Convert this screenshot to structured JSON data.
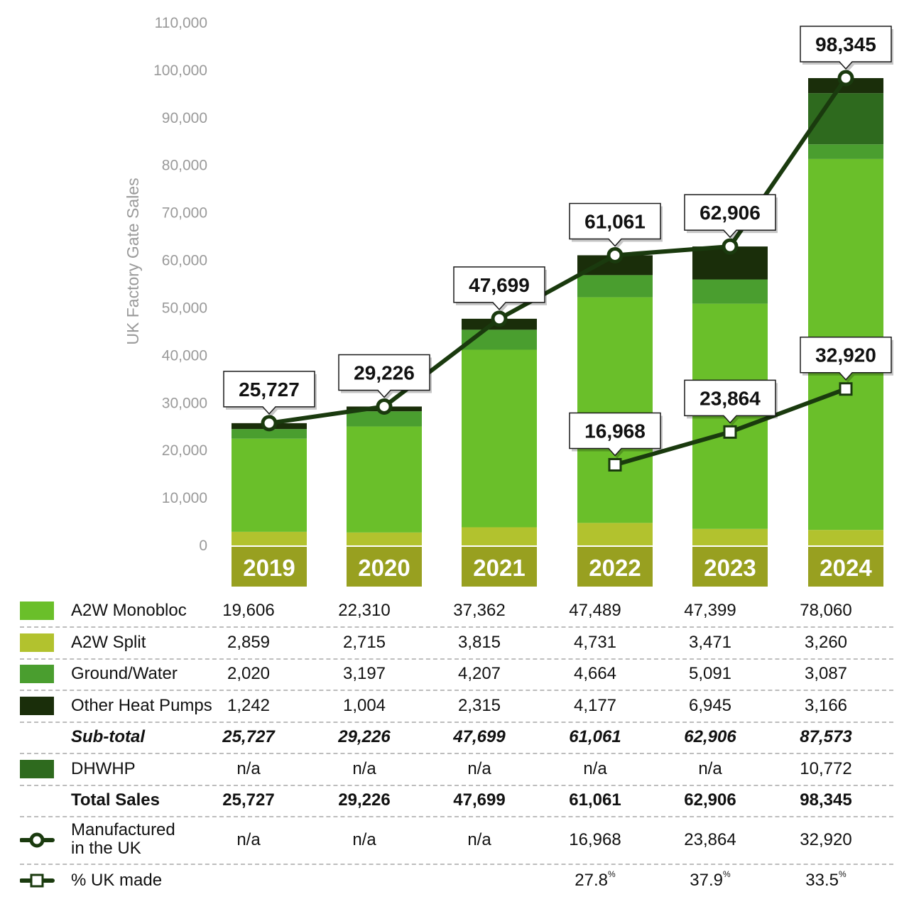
{
  "chart_data": {
    "type": "bar",
    "ylabel": "UK Factory Gate Sales",
    "ylim": [
      0,
      110000
    ],
    "yticks": [
      "110,000",
      "100,000",
      "90,000",
      "80,000",
      "70,000",
      "60,000",
      "50,000",
      "40,000",
      "30,000",
      "20,000",
      "10,000",
      "0"
    ],
    "ytick_values": [
      110000,
      100000,
      90000,
      80000,
      70000,
      60000,
      50000,
      40000,
      30000,
      20000,
      10000,
      0
    ],
    "categories": [
      "2019",
      "2020",
      "2021",
      "2022",
      "2023",
      "2024"
    ],
    "stacking": "stacked",
    "series": [
      {
        "name": "A2W Split",
        "color": "#b2c22e",
        "values": [
          2859,
          2715,
          3815,
          4731,
          3471,
          3260
        ]
      },
      {
        "name": "A2W Monobloc",
        "color": "#6abf2a",
        "values": [
          19606,
          22310,
          37362,
          47489,
          47399,
          78060
        ]
      },
      {
        "name": "Ground/Water",
        "color": "#4a9e2f",
        "values": [
          2020,
          3197,
          4207,
          4664,
          5091,
          3087
        ]
      },
      {
        "name": "DHWHP",
        "color": "#2e6a1e",
        "values": [
          0,
          0,
          0,
          0,
          0,
          10772
        ]
      },
      {
        "name": "Other Heat Pumps",
        "color": "#1a2e0a",
        "values": [
          1242,
          1004,
          2315,
          4177,
          6945,
          3166
        ]
      }
    ],
    "lines": [
      {
        "name": "Total Sales",
        "marker": "circle",
        "values": [
          25727,
          29226,
          47699,
          61061,
          62906,
          98345
        ],
        "labels": [
          "25,727",
          "29,226",
          "47,699",
          "61,061",
          "62,906",
          "98,345"
        ]
      },
      {
        "name": "Manufactured in the UK",
        "marker": "square",
        "values": [
          null,
          null,
          null,
          16968,
          23864,
          32920
        ],
        "labels": [
          "",
          "",
          "",
          "16,968",
          "23,864",
          "32,920"
        ]
      }
    ],
    "year_band_color": "#98a020"
  },
  "table": {
    "rows": [
      {
        "label": "A2W Monobloc",
        "swatch": "#6abf2a",
        "values": [
          "19,606",
          "22,310",
          "37,362",
          "47,489",
          "47,399",
          "78,060"
        ]
      },
      {
        "label": "A2W Split",
        "swatch": "#b2c22e",
        "values": [
          "2,859",
          "2,715",
          "3,815",
          "4,731",
          "3,471",
          "3,260"
        ]
      },
      {
        "label": "Ground/Water",
        "swatch": "#4a9e2f",
        "values": [
          "2,020",
          "3,197",
          "4,207",
          "4,664",
          "5,091",
          "3,087"
        ]
      },
      {
        "label": "Other Heat Pumps",
        "swatch": "#1a2e0a",
        "values": [
          "1,242",
          "1,004",
          "2,315",
          "4,177",
          "6,945",
          "3,166"
        ]
      },
      {
        "label": "Sub-total",
        "values": [
          "25,727",
          "29,226",
          "47,699",
          "61,061",
          "62,906",
          "87,573"
        ]
      },
      {
        "label": "DHWHP",
        "swatch": "#2e6a1e",
        "values": [
          "n/a",
          "n/a",
          "n/a",
          "n/a",
          "n/a",
          "10,772"
        ]
      },
      {
        "label": "Total Sales",
        "values": [
          "25,727",
          "29,226",
          "47,699",
          "61,061",
          "62,906",
          "98,345"
        ]
      },
      {
        "label_line1": "Manufactured",
        "label_line2": "in the UK",
        "values": [
          "n/a",
          "n/a",
          "n/a",
          "16,968",
          "23,864",
          "32,920"
        ]
      },
      {
        "label": "% UK made",
        "values": [
          "",
          "",
          "",
          "27.8",
          "37.9",
          "33.5"
        ],
        "unit": "%"
      }
    ]
  }
}
